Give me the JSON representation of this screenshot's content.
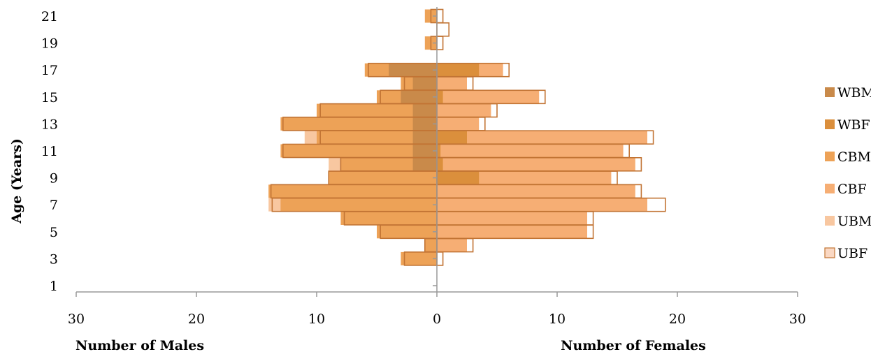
{
  "chart_data": {
    "type": "bar",
    "orientation": "horizontal",
    "layout": "population-pyramid",
    "ylabel": "Age (Years)",
    "xlabel_left": "Number of Males",
    "xlabel_right": "Number of Females",
    "xlim": [
      -30,
      30
    ],
    "x_ticks": [
      {
        "value": -30,
        "label": "30"
      },
      {
        "value": -20,
        "label": "20"
      },
      {
        "value": -10,
        "label": "10"
      },
      {
        "value": 0,
        "label": "0"
      },
      {
        "value": 10,
        "label": "10"
      },
      {
        "value": 20,
        "label": "20"
      },
      {
        "value": 30,
        "label": "30"
      }
    ],
    "ylim": [
      0.5,
      21.7
    ],
    "y_ticks": [
      1,
      3,
      5,
      7,
      9,
      11,
      13,
      15,
      17,
      19,
      21
    ],
    "y_tick_labels": [
      "1",
      "3",
      "5",
      "7",
      "9",
      "11",
      "13",
      "15",
      "17",
      "19",
      "21"
    ],
    "legend_position": "right",
    "series": [
      {
        "name": "WBM",
        "side": "male",
        "style": "fill",
        "color": "#C98A4A",
        "ages": [
          10,
          11,
          12,
          13,
          14,
          15,
          16,
          17
        ],
        "values": [
          2,
          2,
          2,
          2,
          2,
          3,
          2,
          4
        ]
      },
      {
        "name": "WBF",
        "side": "female",
        "style": "fill",
        "color": "#DB8F3C",
        "ages": [
          9,
          10,
          11,
          12,
          15,
          17
        ],
        "values": [
          3.5,
          0.5,
          0.3,
          2.5,
          0.5,
          3.5
        ]
      },
      {
        "name": "CBM",
        "side": "male",
        "style": "fill",
        "color": "#EDA257",
        "ages": [
          3,
          4,
          5,
          6,
          7,
          8,
          9,
          10,
          11,
          12,
          13,
          14,
          15,
          16,
          17,
          19,
          21
        ],
        "values": [
          3,
          1,
          5,
          8,
          13,
          14,
          9,
          8,
          13,
          10,
          13,
          10,
          5,
          3,
          6,
          1,
          1
        ]
      },
      {
        "name": "CBF",
        "side": "female",
        "style": "fill",
        "color": "#F6AE74",
        "ages": [
          4,
          5,
          6,
          7,
          8,
          9,
          10,
          11,
          12,
          13,
          14,
          15,
          16,
          17
        ],
        "values": [
          2.5,
          12.5,
          12.5,
          17.5,
          16.5,
          14.5,
          16.5,
          15.5,
          17.5,
          3.5,
          4.5,
          8.5,
          2.5,
          5.5
        ]
      },
      {
        "name": "UBM",
        "side": "male",
        "style": "fill",
        "color": "#F8C7A0",
        "ages": [
          7,
          8,
          10,
          12
        ],
        "values": [
          14,
          14,
          9,
          11
        ]
      },
      {
        "name": "UBF",
        "side": "female",
        "style": "outline",
        "color": "#C27434",
        "ages": [
          3,
          4,
          5,
          6,
          7,
          8,
          9,
          10,
          11,
          12,
          13,
          14,
          15,
          16,
          17,
          19,
          20,
          21
        ],
        "values": [
          0.5,
          3,
          13,
          13,
          19,
          17,
          15,
          17,
          16,
          18,
          4,
          5,
          9,
          3,
          6,
          0.5,
          1,
          0.5
        ]
      }
    ],
    "outline_male": {
      "name": "UBF male outline",
      "color": "#C27434",
      "ages": [
        3,
        4,
        5,
        6,
        7,
        8,
        9,
        10,
        11,
        12,
        13,
        14,
        15,
        16,
        17,
        19,
        21
      ],
      "values": [
        2.7,
        1,
        4.7,
        7.7,
        13.7,
        13.8,
        9,
        8,
        12.8,
        9.7,
        12.8,
        9.7,
        4.7,
        2.7,
        5.7,
        0.5,
        0.5
      ]
    }
  }
}
